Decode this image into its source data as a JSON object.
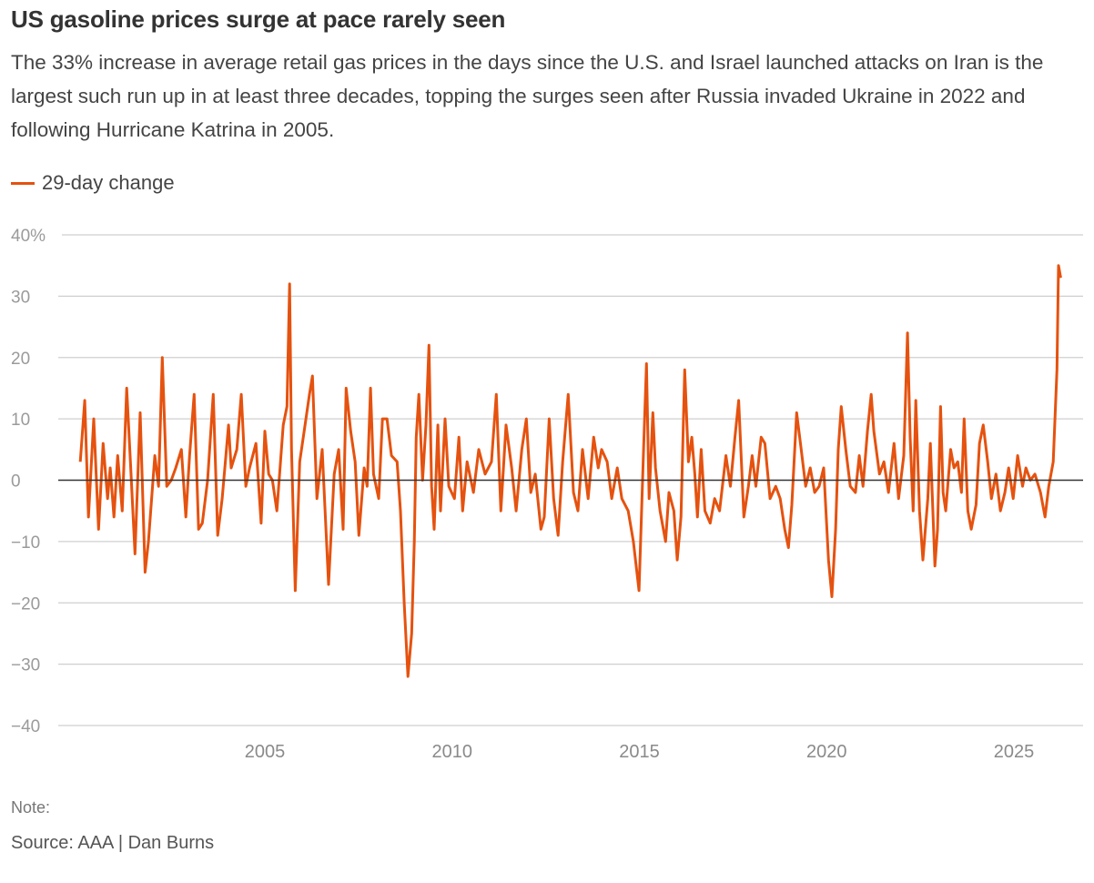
{
  "chart_data": {
    "type": "line",
    "title": "US gasoline prices surge at pace rarely seen",
    "subtitle": "The 33% increase in average retail gas prices in the days since the U.S. and Israel launched attacks on Iran is the largest such run up in at least three decades, topping the surges seen after Russia invaded Ukraine in 2022 and following Hurricane Katrina in 2005.",
    "legend": [
      {
        "label": "29-day change",
        "color": "#e5520f"
      }
    ],
    "legend_placement": "top-left",
    "xlabel": "",
    "ylabel": "",
    "xlim": [
      2000,
      2026.3
    ],
    "ylim": [
      -40,
      40
    ],
    "grid": true,
    "y_ticks": [
      40,
      30,
      20,
      10,
      0,
      -10,
      -20,
      -30,
      -40
    ],
    "y_tick_labels": [
      "40%",
      "30",
      "20",
      "10",
      "0",
      "−10",
      "−20",
      "−30",
      "−40"
    ],
    "x_ticks": [
      2005,
      2010,
      2015,
      2020,
      2025
    ],
    "x_tick_labels": [
      "2005",
      "2010",
      "2015",
      "2020",
      "2025"
    ],
    "series": [
      {
        "name": "29-day change",
        "color": "#e5520f",
        "points": [
          [
            2000.07,
            3
          ],
          [
            2000.19,
            13
          ],
          [
            2000.29,
            -6
          ],
          [
            2000.43,
            10
          ],
          [
            2000.56,
            -8
          ],
          [
            2000.68,
            6
          ],
          [
            2000.8,
            -3
          ],
          [
            2000.87,
            2
          ],
          [
            2000.97,
            -6
          ],
          [
            2001.07,
            4
          ],
          [
            2001.19,
            -5
          ],
          [
            2001.31,
            15
          ],
          [
            2001.41,
            3
          ],
          [
            2001.53,
            -12
          ],
          [
            2001.67,
            11
          ],
          [
            2001.8,
            -15
          ],
          [
            2001.89,
            -10
          ],
          [
            2002.06,
            4
          ],
          [
            2002.16,
            -1
          ],
          [
            2002.26,
            20
          ],
          [
            2002.38,
            -1
          ],
          [
            2002.5,
            0
          ],
          [
            2002.62,
            2
          ],
          [
            2002.77,
            5
          ],
          [
            2002.89,
            -6
          ],
          [
            2002.99,
            4
          ],
          [
            2003.11,
            14
          ],
          [
            2003.23,
            -8
          ],
          [
            2003.33,
            -7
          ],
          [
            2003.47,
            0
          ],
          [
            2003.62,
            14
          ],
          [
            2003.74,
            -9
          ],
          [
            2003.86,
            -3
          ],
          [
            2004.03,
            9
          ],
          [
            2004.1,
            2
          ],
          [
            2004.25,
            5
          ],
          [
            2004.37,
            14
          ],
          [
            2004.49,
            -1
          ],
          [
            2004.59,
            2
          ],
          [
            2004.76,
            6
          ],
          [
            2004.9,
            -7
          ],
          [
            2005.0,
            8
          ],
          [
            2005.1,
            1
          ],
          [
            2005.2,
            0
          ],
          [
            2005.32,
            -5
          ],
          [
            2005.49,
            9
          ],
          [
            2005.59,
            12
          ],
          [
            2005.66,
            32
          ],
          [
            2005.71,
            5
          ],
          [
            2005.81,
            -18
          ],
          [
            2005.93,
            3
          ],
          [
            2006.05,
            8
          ],
          [
            2006.19,
            14
          ],
          [
            2006.27,
            17
          ],
          [
            2006.39,
            -3
          ],
          [
            2006.53,
            5
          ],
          [
            2006.7,
            -17
          ],
          [
            2006.85,
            1
          ],
          [
            2006.97,
            5
          ],
          [
            2007.09,
            -8
          ],
          [
            2007.17,
            15
          ],
          [
            2007.29,
            8
          ],
          [
            2007.41,
            3
          ],
          [
            2007.51,
            -9
          ],
          [
            2007.65,
            2
          ],
          [
            2007.73,
            -1
          ],
          [
            2007.82,
            15
          ],
          [
            2007.9,
            1
          ],
          [
            2008.04,
            -3
          ],
          [
            2008.14,
            10
          ],
          [
            2008.26,
            10
          ],
          [
            2008.38,
            4
          ],
          [
            2008.53,
            3
          ],
          [
            2008.62,
            -5
          ],
          [
            2008.72,
            -20
          ],
          [
            2008.82,
            -32
          ],
          [
            2008.92,
            -25
          ],
          [
            2008.99,
            -10
          ],
          [
            2009.04,
            7
          ],
          [
            2009.11,
            14
          ],
          [
            2009.21,
            0
          ],
          [
            2009.3,
            9
          ],
          [
            2009.38,
            22
          ],
          [
            2009.45,
            -1
          ],
          [
            2009.52,
            -8
          ],
          [
            2009.62,
            9
          ],
          [
            2009.69,
            -5
          ],
          [
            2009.81,
            10
          ],
          [
            2009.91,
            -1
          ],
          [
            2010.06,
            -3
          ],
          [
            2010.18,
            7
          ],
          [
            2010.28,
            -5
          ],
          [
            2010.4,
            3
          ],
          [
            2010.57,
            -2
          ],
          [
            2010.71,
            5
          ],
          [
            2010.88,
            1
          ],
          [
            2011.05,
            3
          ],
          [
            2011.18,
            14
          ],
          [
            2011.3,
            -5
          ],
          [
            2011.44,
            9
          ],
          [
            2011.59,
            2
          ],
          [
            2011.71,
            -5
          ],
          [
            2011.86,
            5
          ],
          [
            2011.98,
            10
          ],
          [
            2012.1,
            -2
          ],
          [
            2012.22,
            1
          ],
          [
            2012.37,
            -8
          ],
          [
            2012.46,
            -6
          ],
          [
            2012.59,
            10
          ],
          [
            2012.71,
            -3
          ],
          [
            2012.83,
            -9
          ],
          [
            2012.95,
            3
          ],
          [
            2013.1,
            14
          ],
          [
            2013.24,
            -2
          ],
          [
            2013.36,
            -5
          ],
          [
            2013.48,
            5
          ],
          [
            2013.63,
            -3
          ],
          [
            2013.78,
            7
          ],
          [
            2013.9,
            2
          ],
          [
            2013.99,
            5
          ],
          [
            2014.14,
            3
          ],
          [
            2014.26,
            -3
          ],
          [
            2014.41,
            2
          ],
          [
            2014.53,
            -3
          ],
          [
            2014.7,
            -5
          ],
          [
            2014.84,
            -10
          ],
          [
            2014.99,
            -18
          ],
          [
            2015.11,
            5
          ],
          [
            2015.19,
            19
          ],
          [
            2015.26,
            -3
          ],
          [
            2015.36,
            11
          ],
          [
            2015.43,
            2
          ],
          [
            2015.55,
            -5
          ],
          [
            2015.7,
            -10
          ],
          [
            2015.79,
            -2
          ],
          [
            2015.92,
            -5
          ],
          [
            2016.01,
            -13
          ],
          [
            2016.11,
            -6
          ],
          [
            2016.21,
            18
          ],
          [
            2016.31,
            3
          ],
          [
            2016.4,
            7
          ],
          [
            2016.48,
            1
          ],
          [
            2016.55,
            -6
          ],
          [
            2016.65,
            5
          ],
          [
            2016.75,
            -5
          ],
          [
            2016.89,
            -7
          ],
          [
            2017.01,
            -3
          ],
          [
            2017.14,
            -5
          ],
          [
            2017.31,
            4
          ],
          [
            2017.43,
            -1
          ],
          [
            2017.55,
            7
          ],
          [
            2017.65,
            13
          ],
          [
            2017.79,
            -6
          ],
          [
            2017.91,
            -1
          ],
          [
            2018.01,
            4
          ],
          [
            2018.11,
            -1
          ],
          [
            2018.25,
            7
          ],
          [
            2018.35,
            6
          ],
          [
            2018.49,
            -3
          ],
          [
            2018.64,
            -1
          ],
          [
            2018.76,
            -3
          ],
          [
            2018.88,
            -8
          ],
          [
            2018.98,
            -11
          ],
          [
            2019.07,
            -4
          ],
          [
            2019.2,
            11
          ],
          [
            2019.32,
            5
          ],
          [
            2019.44,
            -1
          ],
          [
            2019.56,
            2
          ],
          [
            2019.68,
            -2
          ],
          [
            2019.8,
            -1
          ],
          [
            2019.92,
            2
          ],
          [
            2020.05,
            -13
          ],
          [
            2020.14,
            -19
          ],
          [
            2020.24,
            -8
          ],
          [
            2020.31,
            5
          ],
          [
            2020.39,
            12
          ],
          [
            2020.51,
            5
          ],
          [
            2020.63,
            -1
          ],
          [
            2020.77,
            -2
          ],
          [
            2020.87,
            4
          ],
          [
            2020.97,
            -1
          ],
          [
            2021.09,
            8
          ],
          [
            2021.19,
            14
          ],
          [
            2021.26,
            8
          ],
          [
            2021.41,
            1
          ],
          [
            2021.53,
            3
          ],
          [
            2021.65,
            -2
          ],
          [
            2021.8,
            6
          ],
          [
            2021.92,
            -3
          ],
          [
            2022.06,
            4
          ],
          [
            2022.16,
            24
          ],
          [
            2022.23,
            7
          ],
          [
            2022.31,
            -5
          ],
          [
            2022.38,
            13
          ],
          [
            2022.48,
            -5
          ],
          [
            2022.57,
            -13
          ],
          [
            2022.7,
            -3
          ],
          [
            2022.77,
            6
          ],
          [
            2022.89,
            -14
          ],
          [
            2022.96,
            -8
          ],
          [
            2023.04,
            12
          ],
          [
            2023.11,
            -2
          ],
          [
            2023.18,
            -5
          ],
          [
            2023.31,
            5
          ],
          [
            2023.4,
            2
          ],
          [
            2023.5,
            3
          ],
          [
            2023.6,
            -2
          ],
          [
            2023.67,
            10
          ],
          [
            2023.77,
            -5
          ],
          [
            2023.86,
            -8
          ],
          [
            2023.99,
            -4
          ],
          [
            2024.08,
            6
          ],
          [
            2024.18,
            9
          ],
          [
            2024.3,
            3
          ],
          [
            2024.4,
            -3
          ],
          [
            2024.52,
            1
          ],
          [
            2024.64,
            -5
          ],
          [
            2024.76,
            -2
          ],
          [
            2024.86,
            2
          ],
          [
            2024.98,
            -3
          ],
          [
            2025.1,
            4
          ],
          [
            2025.23,
            -1
          ],
          [
            2025.32,
            2
          ],
          [
            2025.44,
            0
          ],
          [
            2025.56,
            1
          ],
          [
            2025.71,
            -2
          ],
          [
            2025.83,
            -6
          ],
          [
            2025.93,
            -1
          ],
          [
            2026.05,
            3
          ],
          [
            2026.15,
            18
          ],
          [
            2026.19,
            35
          ],
          [
            2026.25,
            33
          ]
        ]
      }
    ],
    "note": "Note:",
    "source": "Source: AAA | Dan Burns"
  }
}
